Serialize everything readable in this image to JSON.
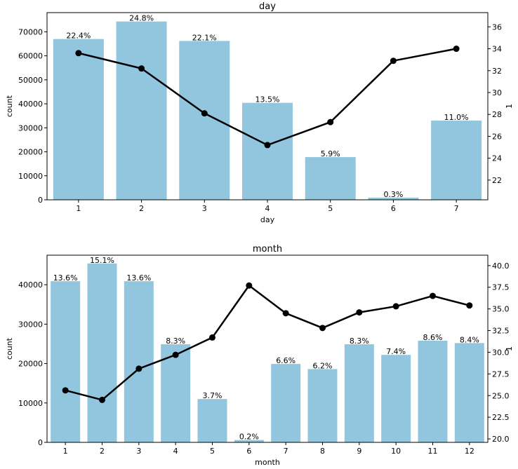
{
  "chart_data": [
    {
      "type": "bar",
      "title": "day",
      "xlabel": "day",
      "ylabel": "count",
      "y2label": "1",
      "categories": [
        "1",
        "2",
        "3",
        "4",
        "5",
        "6",
        "7"
      ],
      "values": [
        67000,
        74300,
        66200,
        40400,
        17800,
        900,
        33000
      ],
      "bar_labels": [
        "22.4%",
        "24.8%",
        "22.1%",
        "13.5%",
        "5.9%",
        "0.3%",
        "11.0%"
      ],
      "ylim": [
        0,
        78000
      ],
      "yticks": [
        0,
        10000,
        20000,
        30000,
        40000,
        50000,
        60000,
        70000
      ],
      "y2lim": [
        20.2,
        37.3
      ],
      "y2ticks": [
        22,
        24,
        26,
        28,
        30,
        32,
        34,
        36
      ],
      "y2tick_labels": [
        "22",
        "24",
        "26",
        "28",
        "30",
        "32",
        "34",
        "36"
      ],
      "line_values": [
        33.6,
        32.2,
        28.1,
        25.2,
        27.3,
        32.9,
        34.0
      ],
      "bar_color": "#92c6de",
      "line_color": "#000000"
    },
    {
      "type": "bar",
      "title": "month",
      "xlabel": "month",
      "ylabel": "count",
      "y2label": "1",
      "categories": [
        "1",
        "2",
        "3",
        "4",
        "5",
        "6",
        "7",
        "8",
        "9",
        "10",
        "11",
        "12"
      ],
      "values": [
        40900,
        45400,
        40900,
        24900,
        11000,
        600,
        19900,
        18600,
        24900,
        22200,
        25800,
        25200
      ],
      "bar_labels": [
        "13.6%",
        "15.1%",
        "13.6%",
        "8.3%",
        "3.7%",
        "0.2%",
        "6.6%",
        "6.2%",
        "8.3%",
        "7.4%",
        "8.6%",
        "8.4%"
      ],
      "ylim": [
        0,
        47500
      ],
      "yticks": [
        0,
        10000,
        20000,
        30000,
        40000
      ],
      "y2lim": [
        19.6,
        41.2
      ],
      "y2ticks": [
        20.0,
        22.5,
        25.0,
        27.5,
        30.0,
        32.5,
        35.0,
        37.5,
        40.0
      ],
      "y2tick_labels": [
        "20.0",
        "22.5",
        "25.0",
        "27.5",
        "30.0",
        "32.5",
        "35.0",
        "37.5",
        "40.0"
      ],
      "line_values": [
        25.6,
        24.5,
        28.1,
        29.7,
        31.7,
        37.7,
        34.5,
        32.8,
        34.6,
        35.3,
        36.5,
        35.4
      ],
      "bar_color": "#92c6de",
      "line_color": "#000000"
    }
  ]
}
